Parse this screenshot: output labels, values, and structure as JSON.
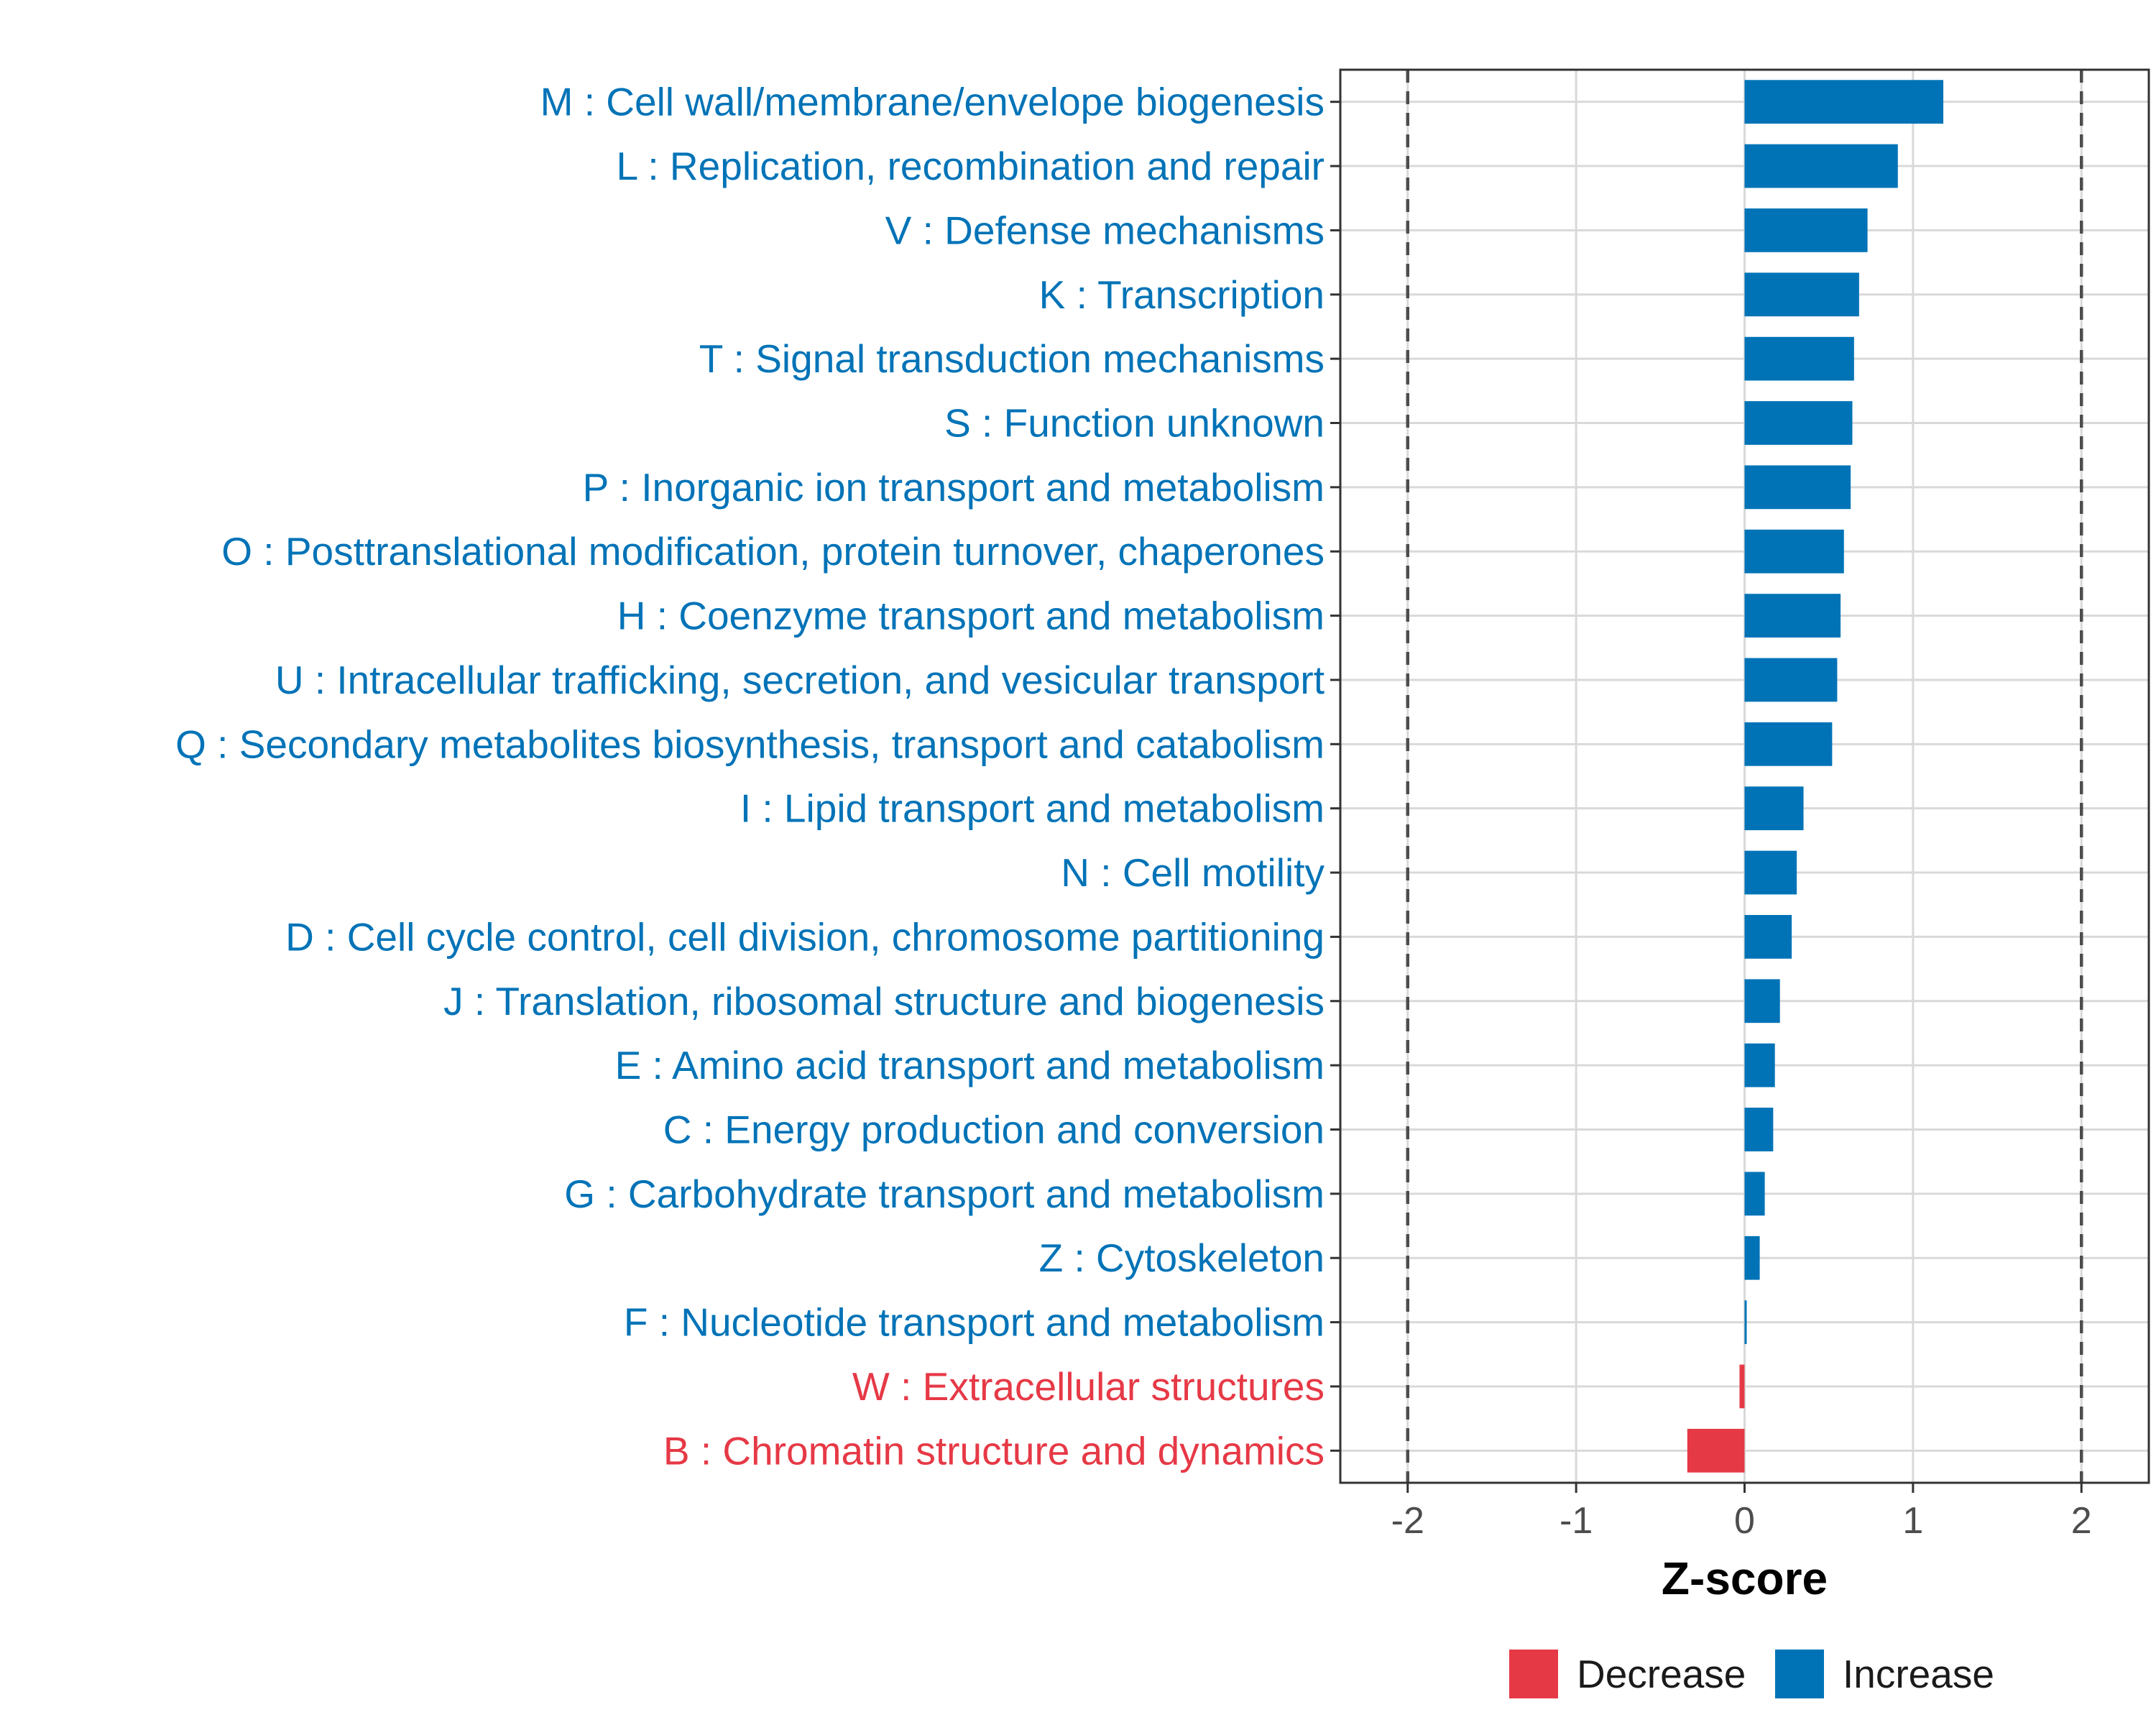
{
  "chart_data": {
    "type": "bar",
    "orientation": "horizontal",
    "xlabel": "Z-score",
    "ylabel": "",
    "xlim": [
      -2.4,
      2.4
    ],
    "xticks": [
      -2,
      -1,
      0,
      1,
      2
    ],
    "xtick_labels": [
      "-2",
      "-1",
      "0",
      "1",
      "2"
    ],
    "reference_lines": [
      -2,
      2
    ],
    "grid": true,
    "categories": [
      "M : Cell wall/membrane/envelope biogenesis",
      "L : Replication, recombination and repair",
      "V : Defense mechanisms",
      "K : Transcription",
      "T : Signal transduction mechanisms",
      "S : Function unknown",
      "P : Inorganic ion transport and metabolism",
      "O : Posttranslational modification, protein turnover, chaperones",
      "H : Coenzyme transport and metabolism",
      "U : Intracellular trafficking, secretion, and vesicular transport",
      "Q : Secondary metabolites biosynthesis, transport and catabolism",
      "I : Lipid transport and metabolism",
      "N : Cell motility",
      "D : Cell cycle control, cell division, chromosome partitioning",
      "J : Translation, ribosomal structure and biogenesis",
      "E : Amino acid transport and metabolism",
      "C : Energy production and conversion",
      "G : Carbohydrate transport and metabolism",
      "Z : Cytoskeleton",
      "F : Nucleotide transport and metabolism",
      "W : Extracellular structures",
      "B : Chromatin structure and dynamics"
    ],
    "values": [
      1.18,
      0.91,
      0.73,
      0.68,
      0.65,
      0.64,
      0.63,
      0.59,
      0.57,
      0.55,
      0.52,
      0.35,
      0.31,
      0.28,
      0.21,
      0.18,
      0.17,
      0.12,
      0.09,
      0.01,
      -0.03,
      -0.34
    ],
    "groups": [
      "Increase",
      "Increase",
      "Increase",
      "Increase",
      "Increase",
      "Increase",
      "Increase",
      "Increase",
      "Increase",
      "Increase",
      "Increase",
      "Increase",
      "Increase",
      "Increase",
      "Increase",
      "Increase",
      "Increase",
      "Increase",
      "Increase",
      "Increase",
      "Decrease",
      "Decrease"
    ],
    "legend": [
      {
        "name": "Decrease",
        "color": "#e63946"
      },
      {
        "name": "Increase",
        "color": "#0073b7"
      }
    ],
    "legend_position": "bottom"
  },
  "colors": {
    "increase": "#0073b7",
    "decrease": "#e63946",
    "grid": "#d9d9d9",
    "panel_border": "#333333",
    "reference_line": "#4d4d4d"
  }
}
